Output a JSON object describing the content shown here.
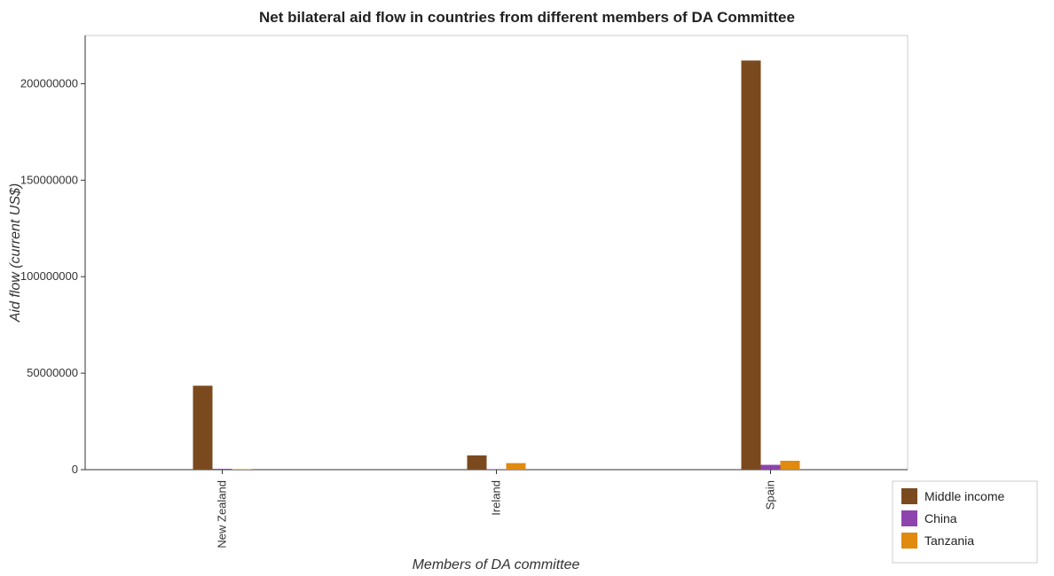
{
  "chart_data": {
    "type": "bar",
    "title": "Net bilateral aid flow in countries from different members of DA Committee",
    "xlabel": "Members of DA committee",
    "ylabel": "Aid flow (current US$)",
    "categories": [
      "New Zealand",
      "Ireland",
      "Spain"
    ],
    "series": [
      {
        "name": "Middle income",
        "color": "#7a4a1e",
        "values": [
          43500000,
          7400000,
          212000000
        ]
      },
      {
        "name": "China",
        "color": "#8e44ad",
        "values": [
          450000,
          100000,
          2500000
        ]
      },
      {
        "name": "Tanzania",
        "color": "#e08a10",
        "values": [
          120000,
          3400000,
          4600000
        ]
      }
    ],
    "ylim": [
      0,
      225000000
    ],
    "yticks": [
      0,
      50000000,
      100000000,
      150000000,
      200000000
    ],
    "ytick_labels": [
      "0",
      "50000000",
      "100000000",
      "150000000",
      "200000000"
    ],
    "legend_position": "bottom-right",
    "grid": false
  }
}
